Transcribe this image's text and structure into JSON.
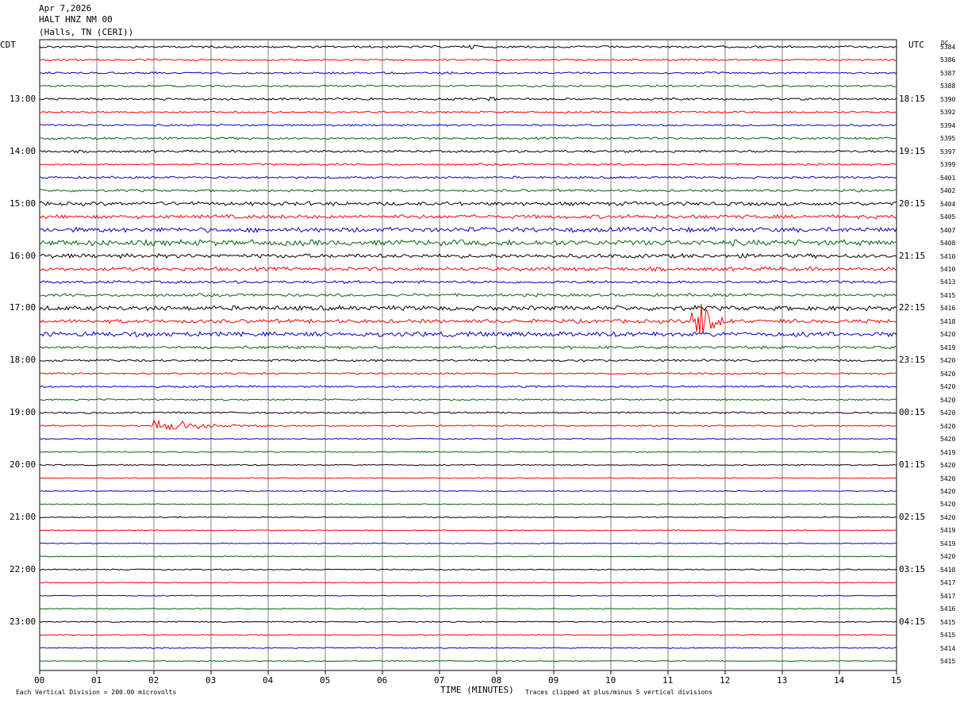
{
  "header": {
    "date": "Apr 7,2026",
    "station": "HALT HNZ NM 00",
    "location": "(Halls, TN (CERI))"
  },
  "left_axis_title": "CDT",
  "right_axis_title": "UTC",
  "dc_label": "DC",
  "footer": {
    "scale_note": "Each Vertical Division =  200.00 microvolts",
    "xlabel": "TIME (MINUTES)",
    "clip_note": "Traces clipped at plus/minus 5 vertical divisions"
  },
  "chart_data": {
    "type": "line",
    "subtype": "helicorder",
    "x_range_minutes": [
      0,
      15
    ],
    "x_ticks": [
      "00",
      "01",
      "02",
      "03",
      "04",
      "05",
      "06",
      "07",
      "08",
      "09",
      "10",
      "11",
      "12",
      "13",
      "14",
      "15"
    ],
    "trace_colors": [
      "#000000",
      "#ff0000",
      "#0000cc",
      "#006600"
    ],
    "left_labels": [
      {
        "row": 4,
        "text": "13:00"
      },
      {
        "row": 8,
        "text": "14:00"
      },
      {
        "row": 12,
        "text": "15:00"
      },
      {
        "row": 16,
        "text": "16:00"
      },
      {
        "row": 20,
        "text": "17:00"
      },
      {
        "row": 24,
        "text": "18:00"
      },
      {
        "row": 28,
        "text": "19:00"
      },
      {
        "row": 32,
        "text": "20:00"
      },
      {
        "row": 36,
        "text": "21:00"
      },
      {
        "row": 40,
        "text": "22:00"
      },
      {
        "row": 44,
        "text": "23:00"
      }
    ],
    "right_labels": [
      {
        "row": 4,
        "text": "18:15"
      },
      {
        "row": 8,
        "text": "19:15"
      },
      {
        "row": 12,
        "text": "20:15"
      },
      {
        "row": 16,
        "text": "21:15"
      },
      {
        "row": 20,
        "text": "22:15"
      },
      {
        "row": 24,
        "text": "23:15"
      },
      {
        "row": 28,
        "text": "00:15"
      },
      {
        "row": 32,
        "text": "01:15"
      },
      {
        "row": 36,
        "text": "02:15"
      },
      {
        "row": 40,
        "text": "03:15"
      },
      {
        "row": 44,
        "text": "04:15"
      }
    ],
    "dc_values": [
      "5384",
      "5386",
      "5387",
      "5388",
      "5390",
      "5392",
      "5394",
      "5395",
      "5397",
      "5399",
      "5401",
      "5402",
      "5404",
      "5405",
      "5407",
      "5408",
      "5410",
      "5410",
      "5413",
      "5415",
      "5416",
      "5418",
      "5420",
      "5419",
      "5420",
      "5420",
      "5420",
      "5420",
      "5420",
      "5420",
      "5420",
      "5419",
      "5420",
      "5420",
      "5420",
      "5420",
      "5420",
      "5419",
      "5419",
      "5420",
      "5418",
      "5417",
      "5417",
      "5416",
      "5415",
      "5415",
      "5414",
      "5415"
    ],
    "noise_level": [
      1.2,
      1,
      1,
      1,
      1.2,
      1,
      1,
      1.2,
      1.3,
      1,
      1.2,
      1.3,
      2,
      2,
      2.5,
      3,
      2.2,
      2,
      1.5,
      1.5,
      2.5,
      2,
      2.5,
      1.5,
      1.2,
      1,
      1,
      0.8,
      1,
      0.8,
      0.6,
      0.6,
      0.6,
      0.5,
      0.5,
      0.5,
      0.5,
      0.5,
      0.5,
      0.5,
      0.6,
      0.5,
      0.5,
      0.5,
      0.6,
      0.5,
      0.5,
      0.5
    ],
    "events": [
      {
        "row": 0,
        "minute": 7.6,
        "amplitude": 6,
        "duration_min": 0.6
      },
      {
        "row": 4,
        "minute": 7.9,
        "amplitude": 5,
        "duration_min": 0.6
      },
      {
        "row": 21,
        "minute": 11.6,
        "amplitude": 48,
        "duration_min": 0.6
      },
      {
        "row": 29,
        "minute": 2.2,
        "amplitude": 9,
        "duration_min": 2.5
      }
    ]
  }
}
